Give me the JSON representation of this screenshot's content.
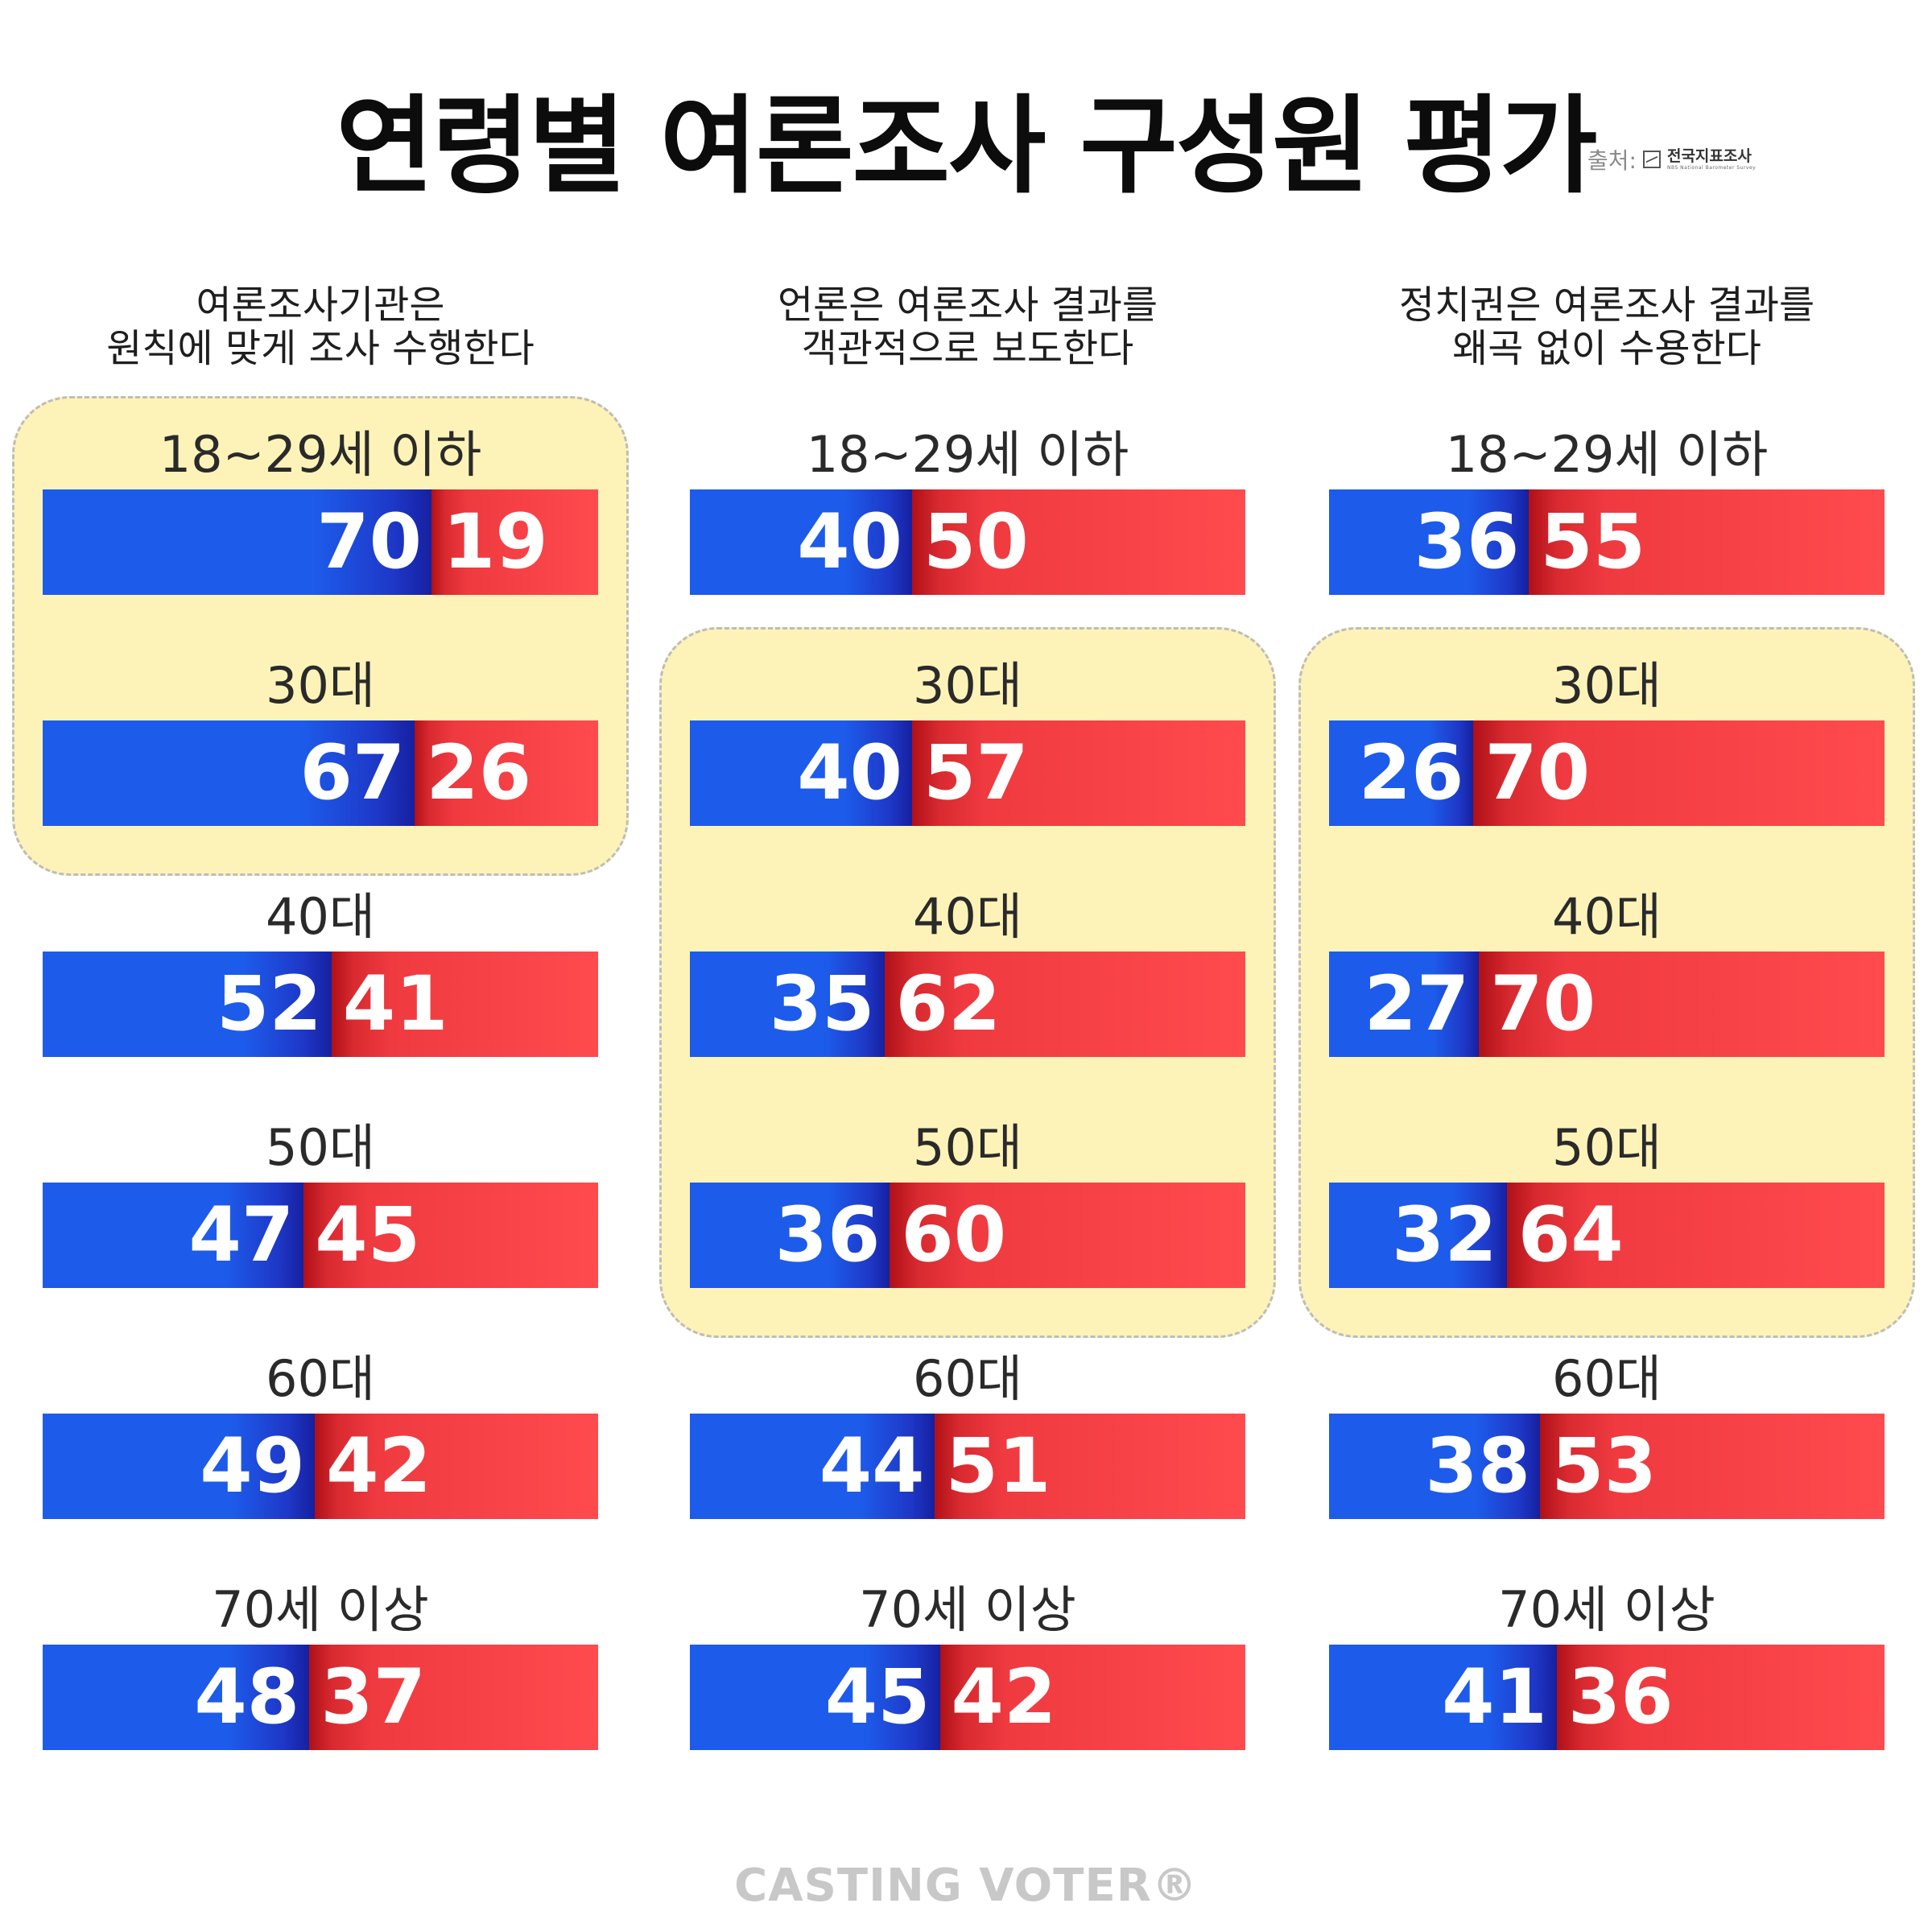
{
  "title": "연령별 여론조사 구성원 평가",
  "source": {
    "label": "출처:",
    "name": "전국지표조사",
    "sub": "NBS National Barometer Survey",
    "logo_icon": "chart-line-icon"
  },
  "footer": {
    "brand": "CASTING VOTER®"
  },
  "colors": {
    "positive": "#1d5bea",
    "negative": "#ff4a4e",
    "highlight": "#fdf3b9"
  },
  "chart_data": [
    {
      "type": "bar",
      "title": "여론조사기관은 원칙에 맞게 조사 수행한다",
      "title_lines": [
        "여론조사기관은",
        "원칙에 맞게 조사 수행한다"
      ],
      "categories": [
        "18~29세 이하",
        "30대",
        "40대",
        "50대",
        "60대",
        "70세 이상"
      ],
      "series": [
        {
          "values": [
            70,
            67,
            52,
            47,
            49,
            48
          ]
        },
        {
          "values": [
            19,
            26,
            41,
            45,
            42,
            37
          ]
        }
      ],
      "highlighted": [
        "18~29세 이하",
        "30대"
      ]
    },
    {
      "type": "bar",
      "title": "언론은 여론조사 결과를 객관적으로 보도한다",
      "title_lines": [
        "언론은 여론조사 결과를",
        "객관적으로 보도한다"
      ],
      "categories": [
        "18~29세 이하",
        "30대",
        "40대",
        "50대",
        "60대",
        "70세 이상"
      ],
      "series": [
        {
          "values": [
            40,
            40,
            35,
            36,
            44,
            45
          ]
        },
        {
          "values": [
            50,
            57,
            62,
            60,
            51,
            42
          ]
        }
      ],
      "highlighted": [
        "30대",
        "40대",
        "50대"
      ]
    },
    {
      "type": "bar",
      "title": "정치권은 여론조사 결과를 왜곡 없이 수용한다",
      "title_lines": [
        "정치권은 여론조사 결과를",
        "왜곡 없이 수용한다"
      ],
      "categories": [
        "18~29세 이하",
        "30대",
        "40대",
        "50대",
        "60대",
        "70세 이상"
      ],
      "series": [
        {
          "values": [
            36,
            26,
            27,
            32,
            38,
            41
          ]
        },
        {
          "values": [
            55,
            70,
            70,
            64,
            53,
            36
          ]
        }
      ],
      "highlighted": [
        "30대",
        "40대",
        "50대"
      ]
    }
  ]
}
